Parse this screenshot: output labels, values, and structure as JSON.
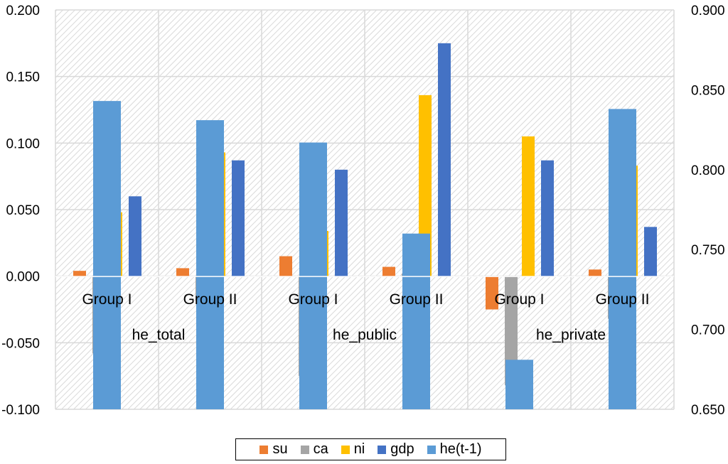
{
  "chart_data": {
    "type": "bar",
    "title": "",
    "xlabel": "",
    "ylabel": "",
    "categories": [
      "Group I",
      "Group II",
      "Group I",
      "Group II",
      "Group I",
      "Group II"
    ],
    "category_groups": [
      {
        "label": "he_total",
        "span": 2
      },
      {
        "label": "he_public",
        "span": 2
      },
      {
        "label": "he_private",
        "span": 2
      }
    ],
    "ylim": [
      -0.1,
      0.2
    ],
    "y_ticks": [
      "0.200",
      "0.150",
      "0.100",
      "0.050",
      "0.000",
      "-0.050",
      "-0.100"
    ],
    "y_tick_values": [
      0.2,
      0.15,
      0.1,
      0.05,
      0.0,
      -0.05,
      -0.1
    ],
    "y2lim": [
      0.65,
      0.9
    ],
    "y2_ticks": [
      "0.900",
      "0.850",
      "0.800",
      "0.750",
      "0.700",
      "0.650"
    ],
    "y2_tick_values": [
      0.9,
      0.85,
      0.8,
      0.75,
      0.7,
      0.65
    ],
    "grid": true,
    "legend_position": "bottom",
    "series": [
      {
        "name": "su",
        "color": "#ED7D31",
        "axis": "primary",
        "values": [
          0.004,
          0.006,
          0.015,
          0.007,
          -0.025,
          0.005
        ]
      },
      {
        "name": "ca",
        "color": "#A5A5A5",
        "axis": "primary",
        "values": [
          -0.058,
          -0.018,
          -0.075,
          0.002,
          -0.082,
          -0.032
        ]
      },
      {
        "name": "ni",
        "color": "#FFC000",
        "axis": "primary",
        "values": [
          0.048,
          0.093,
          0.034,
          0.136,
          0.105,
          0.083
        ]
      },
      {
        "name": "gdp",
        "color": "#4472C4",
        "axis": "primary",
        "values": [
          0.06,
          0.087,
          0.08,
          0.175,
          0.087,
          0.037
        ]
      },
      {
        "name": "he(t-1)",
        "color": "#5B9BD5",
        "axis": "secondary",
        "values": [
          0.843,
          0.831,
          0.817,
          0.76,
          0.681,
          0.838
        ]
      }
    ]
  }
}
